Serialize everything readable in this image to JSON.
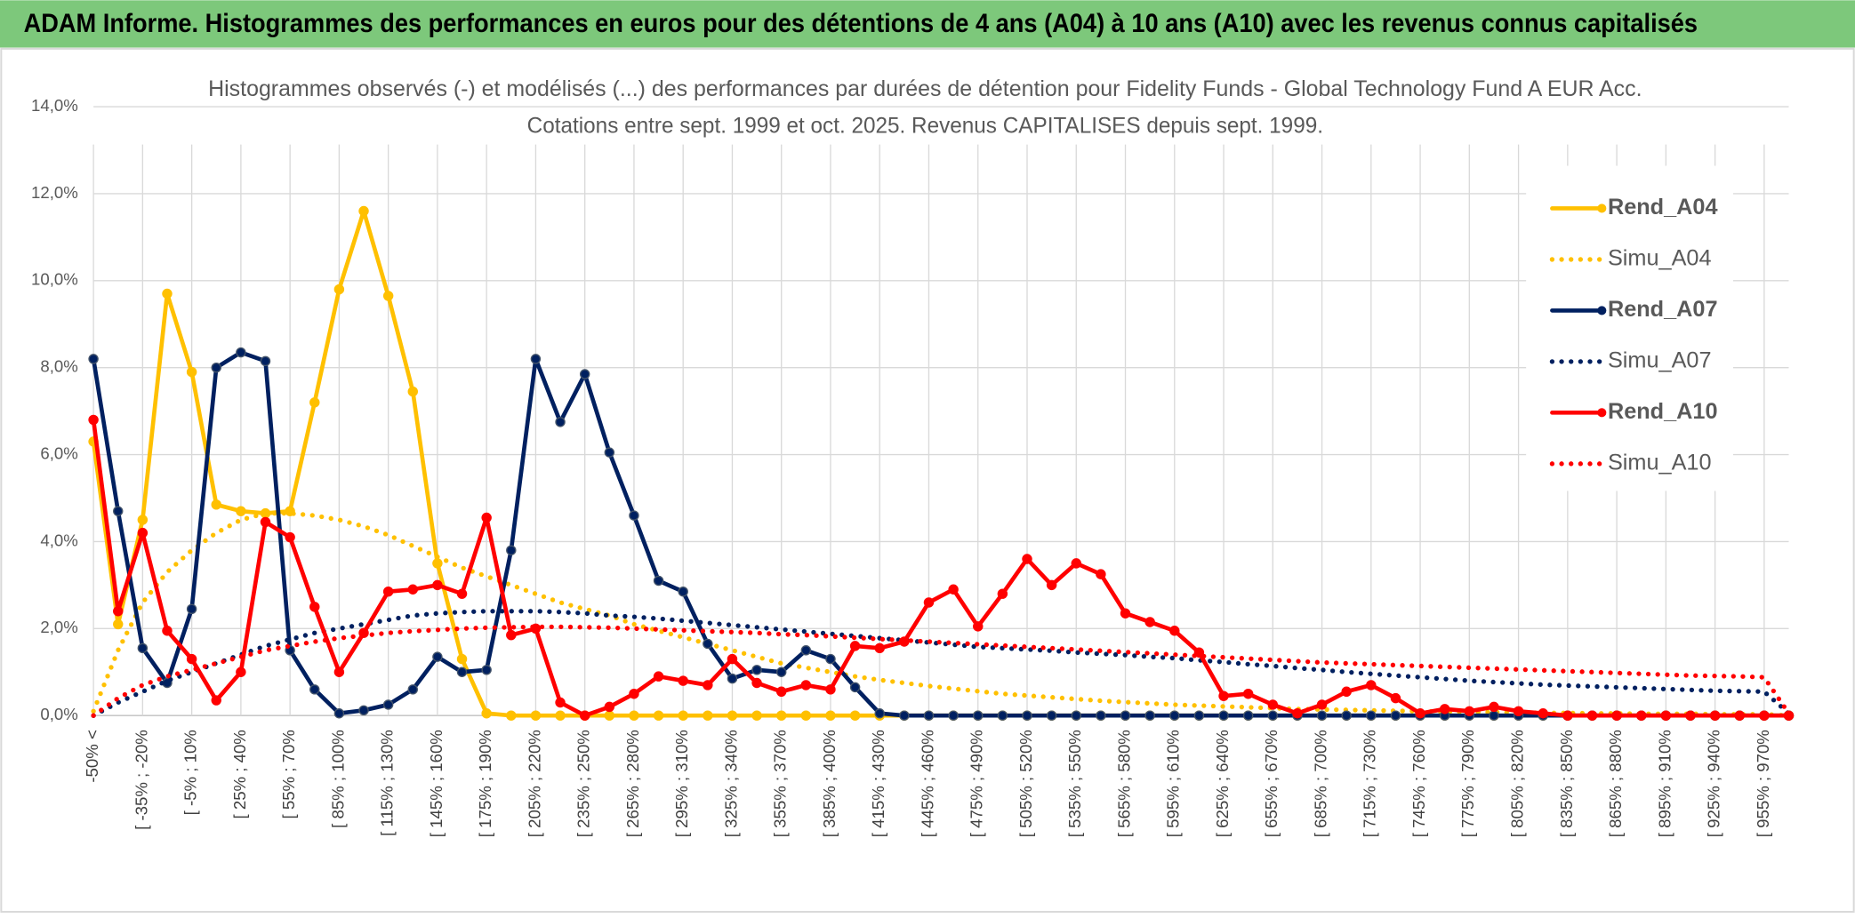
{
  "header": {
    "title": "ADAM Informe. Histogrammes des performances en euros pour des détentions de 4 ans (A04) à 10 ans (A10) avec les revenus connus capitalisés"
  },
  "chart_data": {
    "type": "line",
    "title": "Histogrammes observés (-) et modélisés (...) des performances par durées de détention pour Fidelity Funds - Global Technology Fund A EUR Acc.",
    "subtitle": "Cotations entre sept. 1999 et oct. 2025. Revenus CAPITALISES depuis sept. 1999.",
    "categories": [
      "-50% <",
      null,
      "[ -35% ; -20%",
      null,
      "[ -5% ; 10%",
      null,
      "[ 25% ; 40%",
      null,
      "[ 55% ; 70%",
      null,
      "[ 85% ; 100%",
      null,
      "[ 115% ; 130%",
      null,
      "[ 145% ; 160%",
      null,
      "[ 175% ; 190%",
      null,
      "[ 205% ; 220%",
      null,
      "[ 235% ; 250%",
      null,
      "[ 265% ; 280%",
      null,
      "[ 295% ; 310%",
      null,
      "[ 325% ; 340%",
      null,
      "[ 355% ; 370%",
      null,
      "[ 385% ; 400%",
      null,
      "[ 415% ; 430%",
      null,
      "[ 445% ; 460%",
      null,
      "[ 475% ; 490%",
      null,
      "[ 505% ; 520%",
      null,
      "[ 535% ; 550%",
      null,
      "[ 565% ; 580%",
      null,
      "[ 595% ; 610%",
      null,
      "[ 625% ; 640%",
      null,
      "[ 655% ; 670%",
      null,
      "[ 685% ; 700%",
      null,
      "[ 715% ; 730%",
      null,
      "[ 745% ; 760%",
      null,
      "[ 775% ; 790%",
      null,
      "[ 805% ; 820%",
      null,
      "[ 835% ; 850%",
      null,
      "[ 865% ; 880%",
      null,
      "[ 895% ; 910%",
      null,
      "[ 925% ; 940%",
      null,
      "[ 955% ; 970%",
      null
    ],
    "ylim": [
      0,
      14
    ],
    "yticks": [
      {
        "value": 0,
        "label": "0,0%"
      },
      {
        "value": 2,
        "label": "2,0%"
      },
      {
        "value": 4,
        "label": "4,0%"
      },
      {
        "value": 6,
        "label": "6,0%"
      },
      {
        "value": 8,
        "label": "8,0%"
      },
      {
        "value": 10,
        "label": "10,0%"
      },
      {
        "value": 12,
        "label": "12,0%"
      },
      {
        "value": 14,
        "label": "14,0%"
      }
    ],
    "grid": true,
    "legend": "right",
    "series": [
      {
        "name": "Rend_A04",
        "color": "#FFC000",
        "style": "solid",
        "values": [
          6.3,
          2.1,
          4.5,
          9.7,
          7.9,
          4.85,
          4.7,
          4.65,
          4.7,
          7.2,
          9.8,
          11.6,
          9.65,
          7.45,
          3.5,
          1.3,
          0.05,
          0,
          0,
          0,
          0,
          0,
          0,
          0,
          0,
          0,
          0,
          0,
          0,
          0,
          0,
          0,
          0,
          0,
          0,
          0,
          0,
          0,
          0,
          0,
          0,
          0,
          0,
          0,
          0,
          0,
          0,
          0,
          0,
          0,
          0,
          0,
          0,
          0,
          0,
          0,
          0,
          0,
          0,
          0,
          0,
          0,
          0,
          0,
          0,
          0,
          0,
          0,
          0,
          0
        ]
      },
      {
        "name": "Simu_A04",
        "color": "#FFC000",
        "style": "dotted",
        "values": [
          0.1,
          1.5,
          2.6,
          3.3,
          3.8,
          4.2,
          4.5,
          4.65,
          4.65,
          4.6,
          4.5,
          4.35,
          4.15,
          3.9,
          3.65,
          3.4,
          3.2,
          3.0,
          2.8,
          2.6,
          2.45,
          2.3,
          2.1,
          1.95,
          1.8,
          1.65,
          1.5,
          1.35,
          1.2,
          1.1,
          1.0,
          0.9,
          0.82,
          0.75,
          0.68,
          0.62,
          0.56,
          0.5,
          0.46,
          0.42,
          0.38,
          0.34,
          0.31,
          0.28,
          0.25,
          0.23,
          0.21,
          0.19,
          0.17,
          0.15,
          0.14,
          0.13,
          0.12,
          0.11,
          0.1,
          0.09,
          0.08,
          0.08,
          0.07,
          0.06,
          0.06,
          0.05,
          0.05,
          0.04,
          0.04,
          0.04,
          0.03,
          0.03,
          0.03,
          0
        ]
      },
      {
        "name": "Rend_A07",
        "color": "#002060",
        "style": "solid",
        "values": [
          8.2,
          4.7,
          1.55,
          0.75,
          2.45,
          8.0,
          8.35,
          8.15,
          1.5,
          0.6,
          0.05,
          0.12,
          0.25,
          0.6,
          1.35,
          1.0,
          1.05,
          3.8,
          8.2,
          6.75,
          7.85,
          6.05,
          4.6,
          3.1,
          2.85,
          1.65,
          0.85,
          1.05,
          1.0,
          1.5,
          1.3,
          0.65,
          0.05,
          0,
          0,
          0,
          0,
          0,
          0,
          0,
          0,
          0,
          0,
          0,
          0,
          0,
          0,
          0,
          0,
          0,
          0,
          0,
          0,
          0,
          0,
          0,
          0,
          0,
          0,
          0,
          0,
          0,
          0,
          0,
          0,
          0,
          0,
          0,
          0,
          0
        ]
      },
      {
        "name": "Simu_A07",
        "color": "#002060",
        "style": "dotted",
        "values": [
          0,
          0.3,
          0.55,
          0.8,
          1.0,
          1.2,
          1.4,
          1.6,
          1.75,
          1.9,
          2.0,
          2.1,
          2.2,
          2.3,
          2.35,
          2.38,
          2.4,
          2.4,
          2.4,
          2.38,
          2.35,
          2.3,
          2.27,
          2.23,
          2.18,
          2.13,
          2.08,
          2.03,
          1.98,
          1.93,
          1.88,
          1.83,
          1.78,
          1.73,
          1.68,
          1.63,
          1.58,
          1.55,
          1.52,
          1.49,
          1.45,
          1.42,
          1.39,
          1.35,
          1.32,
          1.27,
          1.23,
          1.18,
          1.14,
          1.09,
          1.05,
          1.0,
          0.96,
          0.92,
          0.88,
          0.84,
          0.8,
          0.77,
          0.74,
          0.71,
          0.69,
          0.67,
          0.65,
          0.63,
          0.61,
          0.59,
          0.57,
          0.56,
          0.55,
          0.05
        ]
      },
      {
        "name": "Rend_A10",
        "color": "#FF0000",
        "style": "solid",
        "values": [
          6.8,
          2.4,
          4.2,
          1.95,
          1.3,
          0.35,
          1.0,
          4.45,
          4.1,
          2.5,
          1.0,
          1.9,
          2.85,
          2.9,
          3.0,
          2.8,
          4.55,
          1.85,
          2.0,
          0.3,
          0,
          0.2,
          0.5,
          0.9,
          0.8,
          0.7,
          1.3,
          0.75,
          0.55,
          0.7,
          0.6,
          1.6,
          1.55,
          1.7,
          2.6,
          2.9,
          2.05,
          2.8,
          3.6,
          3.0,
          3.5,
          3.25,
          2.35,
          2.15,
          1.95,
          1.45,
          0.45,
          0.5,
          0.25,
          0.05,
          0.25,
          0.55,
          0.7,
          0.4,
          0.05,
          0.15,
          0.1,
          0.2,
          0.1,
          0.05,
          0,
          0,
          0,
          0,
          0,
          0,
          0,
          0,
          0,
          0
        ]
      },
      {
        "name": "Simu_A10",
        "color": "#FF0000",
        "style": "dotted",
        "values": [
          0,
          0.4,
          0.7,
          0.9,
          1.05,
          1.2,
          1.35,
          1.5,
          1.6,
          1.7,
          1.78,
          1.84,
          1.9,
          1.94,
          1.97,
          2.0,
          2.02,
          2.03,
          2.04,
          2.04,
          2.03,
          2.02,
          2.0,
          1.98,
          1.96,
          1.94,
          1.92,
          1.9,
          1.87,
          1.85,
          1.82,
          1.79,
          1.76,
          1.73,
          1.7,
          1.67,
          1.64,
          1.61,
          1.58,
          1.55,
          1.52,
          1.49,
          1.46,
          1.43,
          1.4,
          1.37,
          1.34,
          1.31,
          1.28,
          1.25,
          1.22,
          1.2,
          1.18,
          1.16,
          1.14,
          1.12,
          1.1,
          1.08,
          1.06,
          1.04,
          1.02,
          1.0,
          0.98,
          0.96,
          0.94,
          0.92,
          0.91,
          0.9,
          0.88,
          0.05
        ]
      }
    ]
  }
}
